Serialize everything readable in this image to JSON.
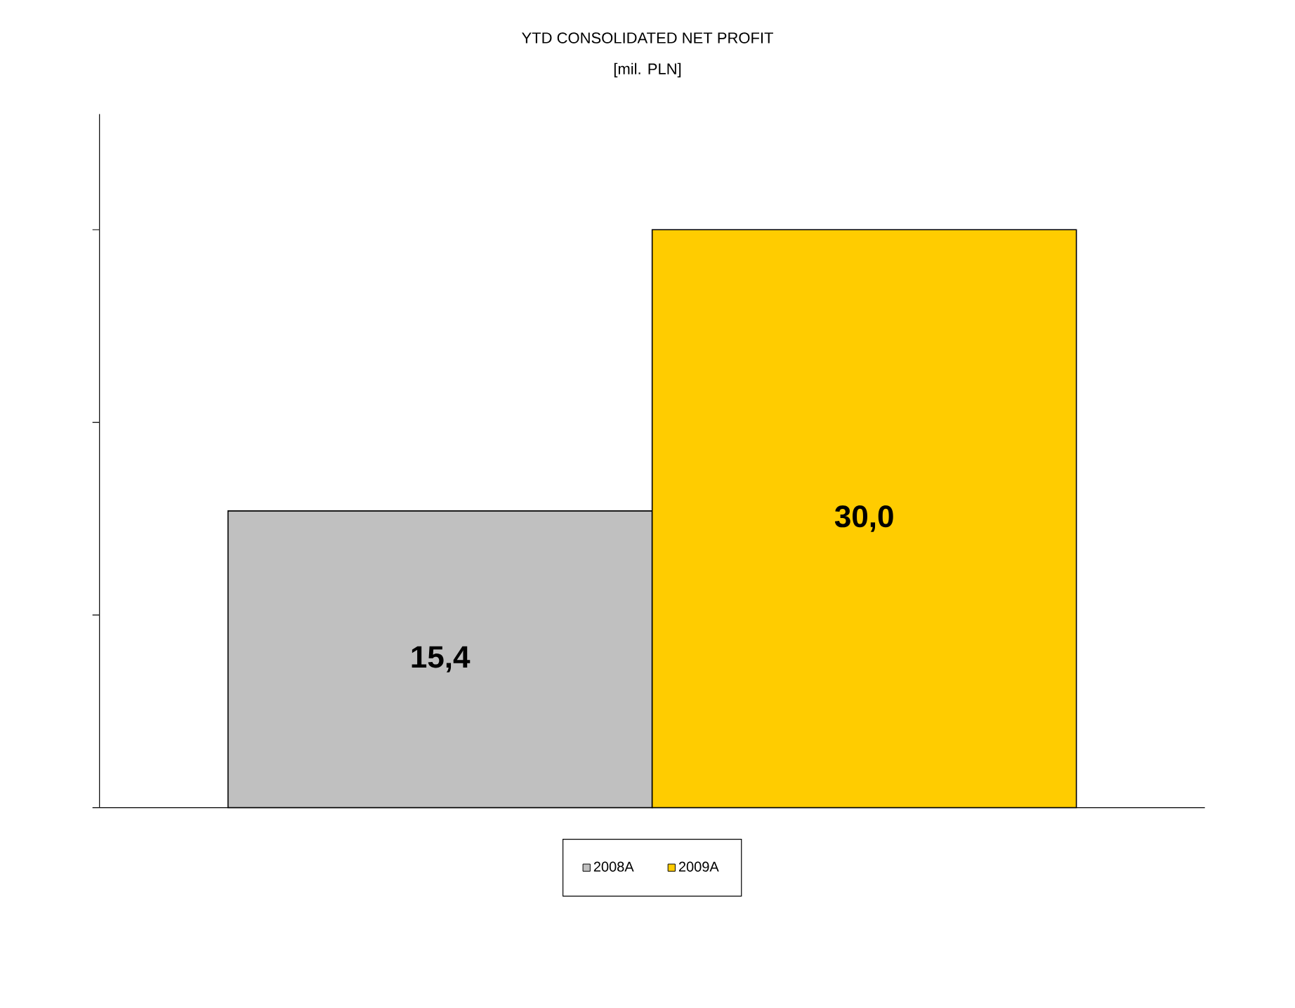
{
  "chart_data": {
    "type": "bar",
    "title": "YTD CONSOLIDATED NET PROFIT",
    "subtitle": "[mil. PLN]",
    "categories": [
      null
    ],
    "series": [
      {
        "name": "2008A",
        "color": "#c0c0c0",
        "values": [
          15.4
        ],
        "value_labels": [
          "15,4"
        ]
      },
      {
        "name": "2009A",
        "color": "#ffcc00",
        "values": [
          30.0
        ],
        "value_labels": [
          "30,0"
        ]
      }
    ],
    "ylim": [
      0,
      36
    ],
    "yticks": [
      {
        "value": 0,
        "label": null
      },
      {
        "value": 10,
        "label": null
      },
      {
        "value": 20,
        "label": null
      },
      {
        "value": 30,
        "label": null
      }
    ],
    "legend": "bottom"
  }
}
